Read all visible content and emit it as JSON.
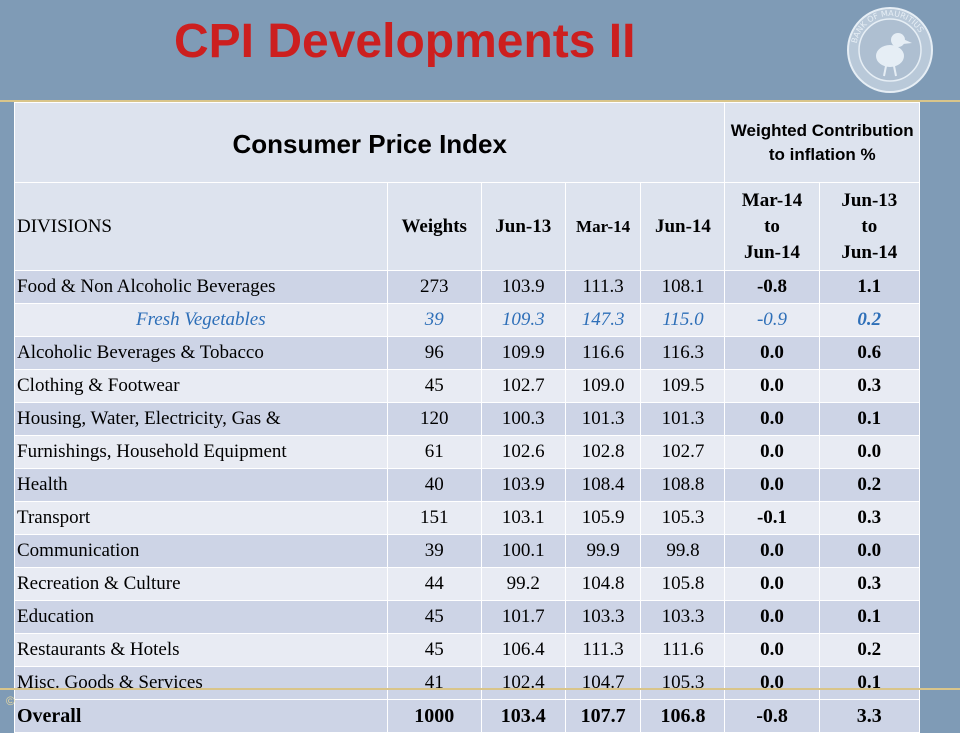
{
  "slide": {
    "title": "CPI Developments II",
    "seal_text": "BANK OF MAURITIUS",
    "footer_mark": "©"
  },
  "table": {
    "title": "Consumer Price Index",
    "contribution_header": "Weighted Contribution to inflation %",
    "columns": {
      "divisions": "DIVISIONS",
      "weights": "Weights",
      "jun13": "Jun-13",
      "mar14": "Mar-14",
      "jun14": "Jun-14",
      "c1_line1": "Mar-14",
      "c1_line2": "to",
      "c1_line3": "Jun-14",
      "c2_line1": "Jun-13",
      "c2_line2": "to",
      "c2_line3": "Jun-14"
    },
    "rows": [
      {
        "name": "Food & Non Alcoholic Beverages",
        "weight": "273",
        "jun13": "103.9",
        "mar14": "111.3",
        "jun14": "108.1",
        "c1": "-0.8",
        "c2": "1.1"
      },
      {
        "name": "Fresh Vegetables",
        "weight": "39",
        "jun13": "109.3",
        "mar14": "147.3",
        "jun14": "115.0",
        "c1": "-0.9",
        "c2": "0.2"
      },
      {
        "name": "Alcoholic Beverages & Tobacco",
        "weight": "96",
        "jun13": "109.9",
        "mar14": "116.6",
        "jun14": "116.3",
        "c1": "0.0",
        "c2": "0.6"
      },
      {
        "name": "Clothing & Footwear",
        "weight": "45",
        "jun13": "102.7",
        "mar14": "109.0",
        "jun14": "109.5",
        "c1": "0.0",
        "c2": "0.3"
      },
      {
        "name": "Housing, Water, Electricity, Gas &",
        "weight": "120",
        "jun13": "100.3",
        "mar14": "101.3",
        "jun14": "101.3",
        "c1": "0.0",
        "c2": "0.1"
      },
      {
        "name": "Furnishings, Household Equipment",
        "weight": "61",
        "jun13": "102.6",
        "mar14": "102.8",
        "jun14": "102.7",
        "c1": "0.0",
        "c2": "0.0"
      },
      {
        "name": "Health",
        "weight": "40",
        "jun13": "103.9",
        "mar14": "108.4",
        "jun14": "108.8",
        "c1": "0.0",
        "c2": "0.2"
      },
      {
        "name": "Transport",
        "weight": "151",
        "jun13": "103.1",
        "mar14": "105.9",
        "jun14": "105.3",
        "c1": "-0.1",
        "c2": "0.3"
      },
      {
        "name": "Communication",
        "weight": "39",
        "jun13": "100.1",
        "mar14": "99.9",
        "jun14": "99.8",
        "c1": "0.0",
        "c2": "0.0"
      },
      {
        "name": "Recreation & Culture",
        "weight": "44",
        "jun13": "99.2",
        "mar14": "104.8",
        "jun14": "105.8",
        "c1": "0.0",
        "c2": "0.3"
      },
      {
        "name": "Education",
        "weight": "45",
        "jun13": "101.7",
        "mar14": "103.3",
        "jun14": "103.3",
        "c1": "0.0",
        "c2": "0.1"
      },
      {
        "name": "Restaurants & Hotels",
        "weight": "45",
        "jun13": "106.4",
        "mar14": "111.3",
        "jun14": "111.6",
        "c1": "0.0",
        "c2": "0.2"
      },
      {
        "name": "Misc. Goods & Services",
        "weight": "41",
        "jun13": "102.4",
        "mar14": "104.7",
        "jun14": "105.3",
        "c1": "0.0",
        "c2": "0.1"
      }
    ],
    "overall": {
      "name": "Overall",
      "weight": "1000",
      "jun13": "103.4",
      "mar14": "107.7",
      "jun14": "106.8",
      "c1": "-0.8",
      "c2": "3.3"
    }
  },
  "colors": {
    "background": "#7f9bb6",
    "title": "#cc1f1f",
    "row_dark": "#cdd4e6",
    "row_light": "#e8ebf3",
    "highlight_text": "#2e6fb8"
  }
}
